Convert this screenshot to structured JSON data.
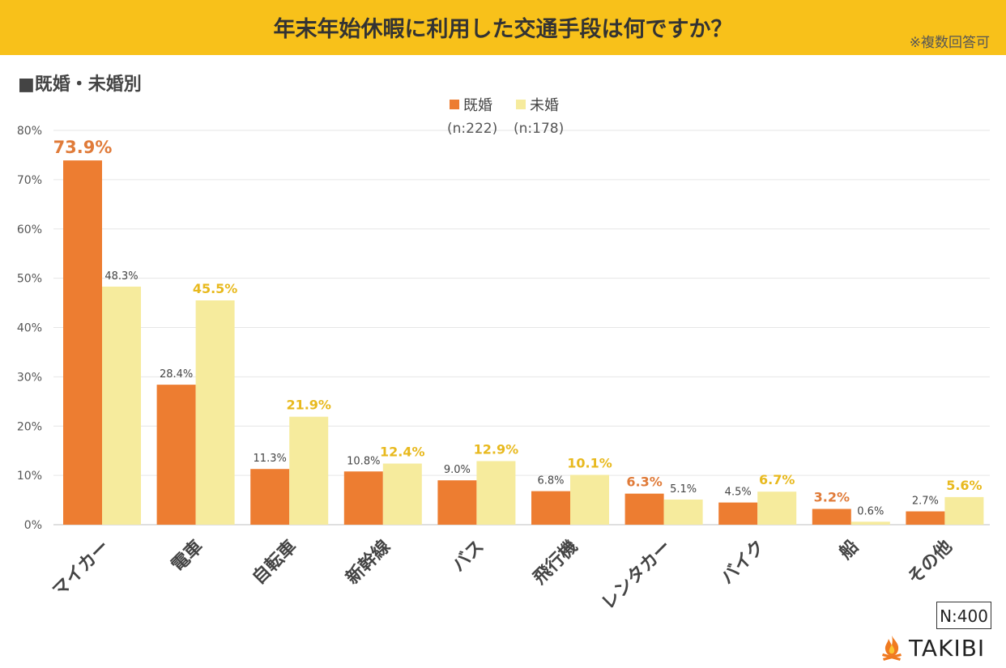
{
  "header": {
    "title": "年末年始休暇に利用した交通手段は何ですか？",
    "note": "※複数回答可",
    "subtitle": "■既婚・未婚別"
  },
  "chart_data": {
    "type": "bar",
    "categories": [
      "マイカー",
      "電車",
      "自転車",
      "新幹線",
      "バス",
      "飛行機",
      "レンタカー",
      "バイク",
      "船",
      "その他"
    ],
    "series": [
      {
        "name": "既婚",
        "sample": "(n:222)",
        "color": "#ed7d31",
        "values": [
          73.9,
          28.4,
          11.3,
          10.8,
          9.0,
          6.8,
          6.3,
          4.5,
          3.2,
          2.7
        ],
        "labels": [
          "73.9%",
          "28.4%",
          "11.3%",
          "10.8%",
          "9.0%",
          "6.8%",
          "6.3%",
          "4.5%",
          "3.2%",
          "2.7%"
        ],
        "highlight": [
          true,
          false,
          false,
          false,
          false,
          false,
          true,
          false,
          true,
          false
        ]
      },
      {
        "name": "未婚",
        "sample": "(n:178)",
        "color": "#f6eb9d",
        "values": [
          48.3,
          45.5,
          21.9,
          12.4,
          12.9,
          10.1,
          5.1,
          6.7,
          0.6,
          5.6
        ],
        "labels": [
          "48.3%",
          "45.5%",
          "21.9%",
          "12.4%",
          "12.9%",
          "10.1%",
          "5.1%",
          "6.7%",
          "0.6%",
          "5.6%"
        ],
        "highlight": [
          false,
          true,
          true,
          true,
          true,
          true,
          false,
          true,
          false,
          true
        ]
      }
    ],
    "highlight_colors": {
      "既婚": "#e07b39",
      "未婚": "#e8b91e"
    },
    "ylim": [
      0,
      80
    ],
    "yticks": [
      "0%",
      "10%",
      "20%",
      "30%",
      "40%",
      "50%",
      "60%",
      "70%",
      "80%"
    ],
    "grid": true,
    "legend": "top-center"
  },
  "footer": {
    "sample_size": "N:400",
    "brand": "TAKIBI"
  }
}
